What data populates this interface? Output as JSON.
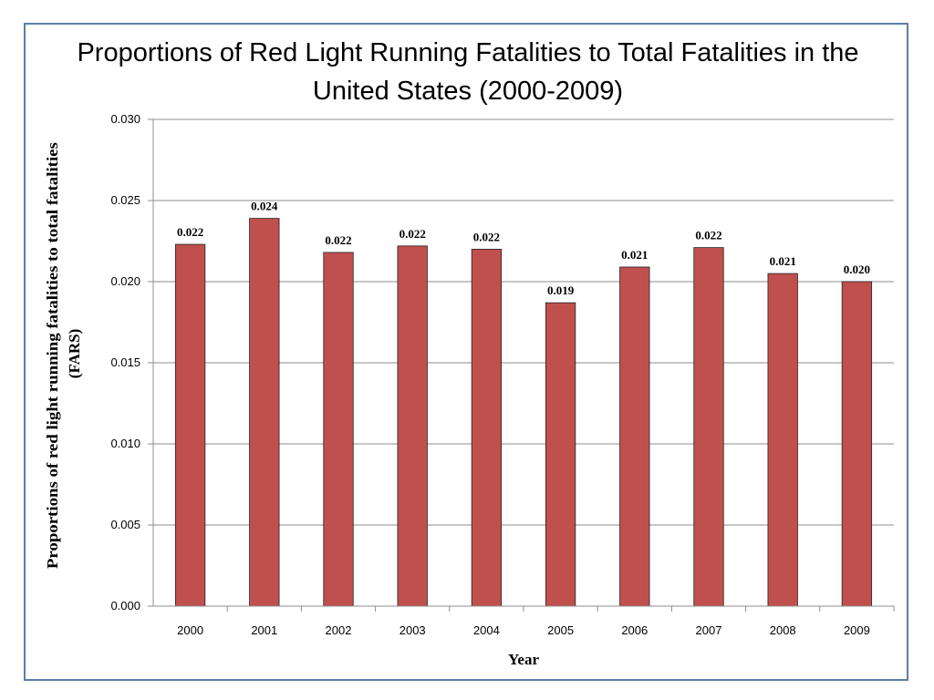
{
  "chart_data": {
    "type": "bar",
    "title_lines": [
      "Proportions of Red Light Running Fatalities to Total Fatalities in the",
      "United States (2000-2009)"
    ],
    "xlabel": "Year",
    "ylabel_lines": [
      "Proportions of red light running fatalities to total fatalities",
      "(FARS)"
    ],
    "categories": [
      "2000",
      "2001",
      "2002",
      "2003",
      "2004",
      "2005",
      "2006",
      "2007",
      "2008",
      "2009"
    ],
    "values": [
      0.0223,
      0.0239,
      0.0218,
      0.0222,
      0.022,
      0.0187,
      0.0209,
      0.0221,
      0.0205,
      0.02
    ],
    "data_labels": [
      "0.022",
      "0.024",
      "0.022",
      "0.022",
      "0.022",
      "0.019",
      "0.021",
      "0.022",
      "0.021",
      "0.020"
    ],
    "y_ticks": [
      "0.000",
      "0.005",
      "0.010",
      "0.015",
      "0.020",
      "0.025",
      "0.030"
    ],
    "ylim": [
      0,
      0.03
    ],
    "grid": true,
    "bar_color": "#c0504d",
    "border_color": "#5b7fa6"
  }
}
